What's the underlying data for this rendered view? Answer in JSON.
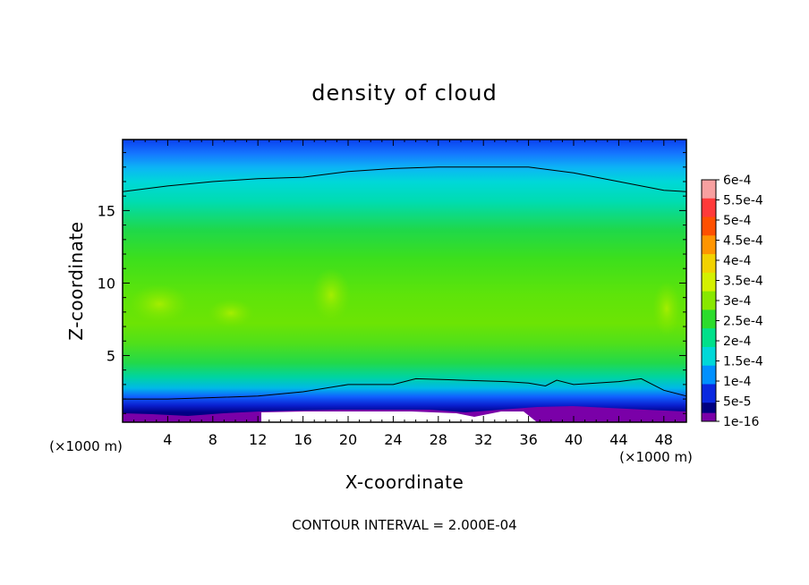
{
  "chart_data": {
    "type": "heatmap",
    "title": "density of cloud",
    "xlabel": "X-coordinate",
    "ylabel": "Z-coordinate",
    "x_unit": "(×1000 m)",
    "z_unit": "(×1000 m)",
    "xlim": [
      0,
      50
    ],
    "ylim": [
      0.4,
      19.9
    ],
    "x_ticks": [
      4,
      8,
      12,
      16,
      20,
      24,
      28,
      32,
      36,
      40,
      44,
      48
    ],
    "y_ticks": [
      5,
      10,
      15
    ],
    "footer": "CONTOUR INTERVAL = 2.000E-04",
    "colorbar": {
      "labels": [
        "6e-4",
        "5.5e-4",
        "5e-4",
        "4.5e-4",
        "4e-4",
        "3.5e-4",
        "3e-4",
        "2.5e-4",
        "2e-4",
        "1.5e-4",
        "1e-4",
        "5e-5",
        "1e-16"
      ],
      "colors": [
        "#f7a0a0",
        "#ff3a3a",
        "#ff5000",
        "#ff9500",
        "#f2d200",
        "#d4f000",
        "#88e800",
        "#2cdc2c",
        "#00e08a",
        "#00d8d8",
        "#0090ff",
        "#0a28e0",
        "#000080"
      ],
      "bottom_color": "#7a00a8"
    },
    "contour_lines": [
      {
        "level": "2.000E-04",
        "z_profile": [
          [
            0,
            16.3
          ],
          [
            4,
            16.7
          ],
          [
            8,
            17.0
          ],
          [
            12,
            17.2
          ],
          [
            16,
            17.3
          ],
          [
            20,
            17.7
          ],
          [
            24,
            17.9
          ],
          [
            28,
            18.0
          ],
          [
            32,
            18.0
          ],
          [
            36,
            18.0
          ],
          [
            40,
            17.6
          ],
          [
            44,
            17.0
          ],
          [
            48,
            16.4
          ],
          [
            50,
            16.3
          ]
        ]
      },
      {
        "level": "2.000E-04",
        "z_profile": [
          [
            0,
            2.0
          ],
          [
            4,
            2.0
          ],
          [
            8,
            2.1
          ],
          [
            12,
            2.2
          ],
          [
            16,
            2.5
          ],
          [
            20,
            3.0
          ],
          [
            24,
            3.0
          ],
          [
            26,
            3.4
          ],
          [
            30,
            3.3
          ],
          [
            34,
            3.2
          ],
          [
            36,
            3.1
          ],
          [
            37.5,
            2.9
          ],
          [
            38.5,
            3.3
          ],
          [
            40,
            3.0
          ],
          [
            44,
            3.2
          ],
          [
            46,
            3.4
          ],
          [
            48,
            2.6
          ],
          [
            50,
            2.2
          ]
        ]
      }
    ],
    "field_samples": {
      "z": [
        0.4,
        1.0,
        1.6,
        2.2,
        3.0,
        4.0,
        5.5,
        7.5,
        9.0,
        11.0,
        13.0,
        15.0,
        16.3,
        17.0,
        18.0,
        19.0,
        19.9
      ],
      "density": [
        1e-16,
        2e-05,
        7e-05,
        0.00013,
        0.00023,
        0.00027,
        0.00031,
        0.00034,
        0.00033,
        0.00032,
        0.0003,
        0.00025,
        0.0002,
        0.00017,
        0.00014,
        0.00011,
        9e-05
      ]
    }
  }
}
